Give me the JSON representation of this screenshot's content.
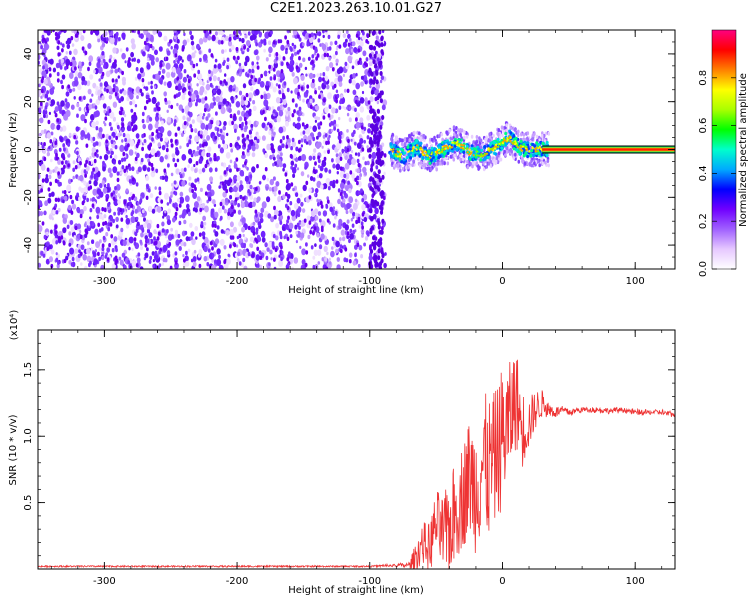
{
  "title": "C2E1.2023.263.10.01.G27",
  "chart_data": [
    {
      "type": "heatmap",
      "xlabel": "Height of straight line (km)",
      "ylabel": "Frequency (Hz)",
      "xlim": [
        -350,
        130
      ],
      "ylim": [
        -50,
        50
      ],
      "x_ticks": [
        "-300",
        "-200",
        "-100",
        "0",
        "100"
      ],
      "y_ticks": [
        "40",
        "20",
        "0",
        "-20",
        "-40"
      ],
      "colorbar": {
        "label": "Normalized spectral amplitude",
        "range": [
          0.0,
          1.0
        ],
        "ticks": [
          "0.0",
          "0.2",
          "0.4",
          "0.6",
          "0.8"
        ],
        "colors": [
          "#ffffff",
          "#e6c8ff",
          "#a060ff",
          "#7000ff",
          "#0000ff",
          "#00aaff",
          "#00ffcc",
          "#00ff00",
          "#aaff00",
          "#ffff00",
          "#ff8000",
          "#ff0000",
          "#ff0080"
        ]
      },
      "noise_region": [
        -350,
        -88
      ],
      "signal_track": [
        {
          "x": -85,
          "y": 0
        },
        {
          "x": -75,
          "y": -3
        },
        {
          "x": -65,
          "y": 1
        },
        {
          "x": -55,
          "y": -3
        },
        {
          "x": -45,
          "y": 0
        },
        {
          "x": -35,
          "y": 3
        },
        {
          "x": -25,
          "y": -1
        },
        {
          "x": -15,
          "y": -2
        },
        {
          "x": -5,
          "y": 1
        },
        {
          "x": 5,
          "y": 5
        },
        {
          "x": 15,
          "y": 0
        },
        {
          "x": 25,
          "y": 0
        },
        {
          "x": 35,
          "y": 0
        }
      ],
      "carrier": {
        "x_start": 30,
        "x_end": 130,
        "y": 0
      }
    },
    {
      "type": "line",
      "xlabel": "Height of straight line (km)",
      "ylabel": "SNR (10 * v/v)",
      "y_multiplier": "(x10⁴)",
      "xlim": [
        -350,
        130
      ],
      "ylim": [
        0,
        1.8
      ],
      "x_ticks": [
        "-300",
        "-200",
        "-100",
        "0",
        "100"
      ],
      "y_ticks": [
        "0.5",
        "1.0",
        "1.5"
      ],
      "series": [
        {
          "color": "#ee3333",
          "x": [
            -350,
            -200,
            -100,
            -70,
            -65,
            -60,
            -55,
            -50,
            -45,
            -40,
            -35,
            -30,
            -25,
            -20,
            -15,
            -10,
            -5,
            0,
            5,
            10,
            15,
            20,
            25,
            30,
            35,
            40,
            45,
            50,
            60,
            70,
            80,
            90,
            100,
            110,
            120,
            130
          ],
          "y": [
            0.02,
            0.02,
            0.02,
            0.03,
            0.1,
            0.2,
            0.15,
            0.35,
            0.25,
            0.3,
            0.45,
            0.55,
            0.7,
            0.6,
            0.8,
            0.75,
            0.85,
            1.0,
            1.1,
            1.3,
            1.05,
            1.1,
            1.2,
            1.25,
            1.2,
            1.18,
            1.2,
            1.18,
            1.2,
            1.2,
            1.19,
            1.2,
            1.18,
            1.18,
            1.18,
            1.16
          ],
          "noise_band": [
            0.0,
            0.0,
            0.0,
            0.02,
            0.12,
            0.15,
            0.2,
            0.25,
            0.3,
            0.35,
            0.4,
            0.4,
            0.45,
            0.5,
            0.55,
            0.55,
            0.5,
            0.55,
            0.45,
            0.4,
            0.3,
            0.2,
            0.15,
            0.1,
            0.06,
            0.04,
            0.03,
            0.03,
            0.02,
            0.02,
            0.02,
            0.02,
            0.02,
            0.02,
            0.02,
            0.02
          ]
        }
      ]
    }
  ]
}
